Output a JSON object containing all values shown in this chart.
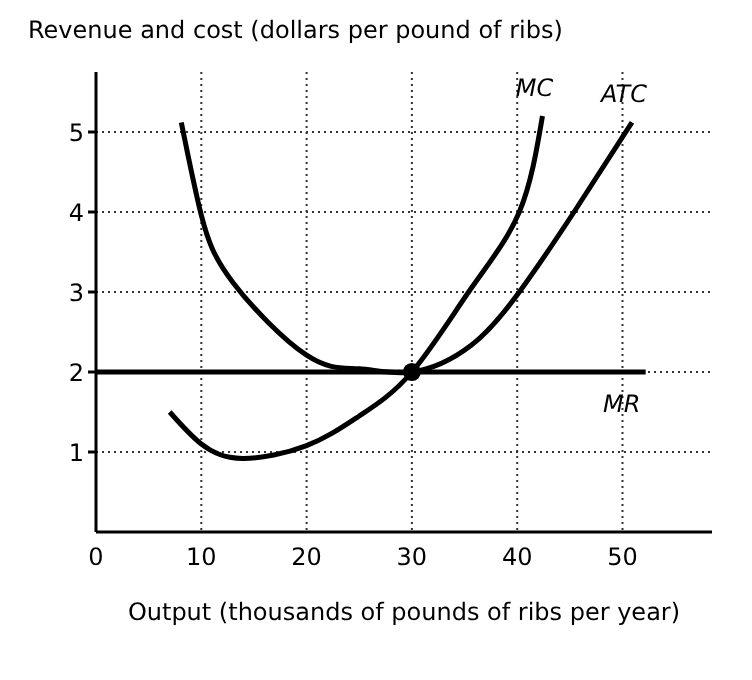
{
  "chart_data": {
    "type": "line",
    "xlabel": "Output (thousands of pounds of ribs per year)",
    "ylabel": "Revenue and cost (dollars per pound of ribs)",
    "series": [
      {
        "name": "MC",
        "color": "#000000",
        "x": [
          7,
          10,
          13.9,
          20,
          25,
          30,
          35.6,
          40.2,
          42.4
        ],
        "values": [
          1.5,
          1.1,
          0.92,
          1.08,
          1.45,
          2,
          3.04,
          4,
          5.2
        ]
      },
      {
        "name": "ATC",
        "color": "#000000",
        "x": [
          8.1,
          10,
          13,
          20,
          25,
          30,
          35.6,
          40.2,
          45.4,
          50.9
        ],
        "values": [
          5.12,
          3.96,
          3.12,
          2.21,
          2.04,
          2,
          2.33,
          3,
          4,
          5.12
        ]
      },
      {
        "name": "MR",
        "color": "#000000",
        "x": [
          0,
          52.2
        ],
        "values": [
          2,
          2
        ]
      },
      {
        "type": "scatter",
        "color": "#000000",
        "x": [
          30
        ],
        "values": [
          2
        ],
        "marker": "circle"
      }
    ],
    "xlim": [
      0,
      58.5
    ],
    "ylim": [
      0,
      5.75
    ],
    "xticks": [
      0,
      10,
      20,
      30,
      40,
      50
    ],
    "yticks": [
      1,
      2,
      3,
      4,
      5
    ],
    "grid": true,
    "marker": "none"
  }
}
